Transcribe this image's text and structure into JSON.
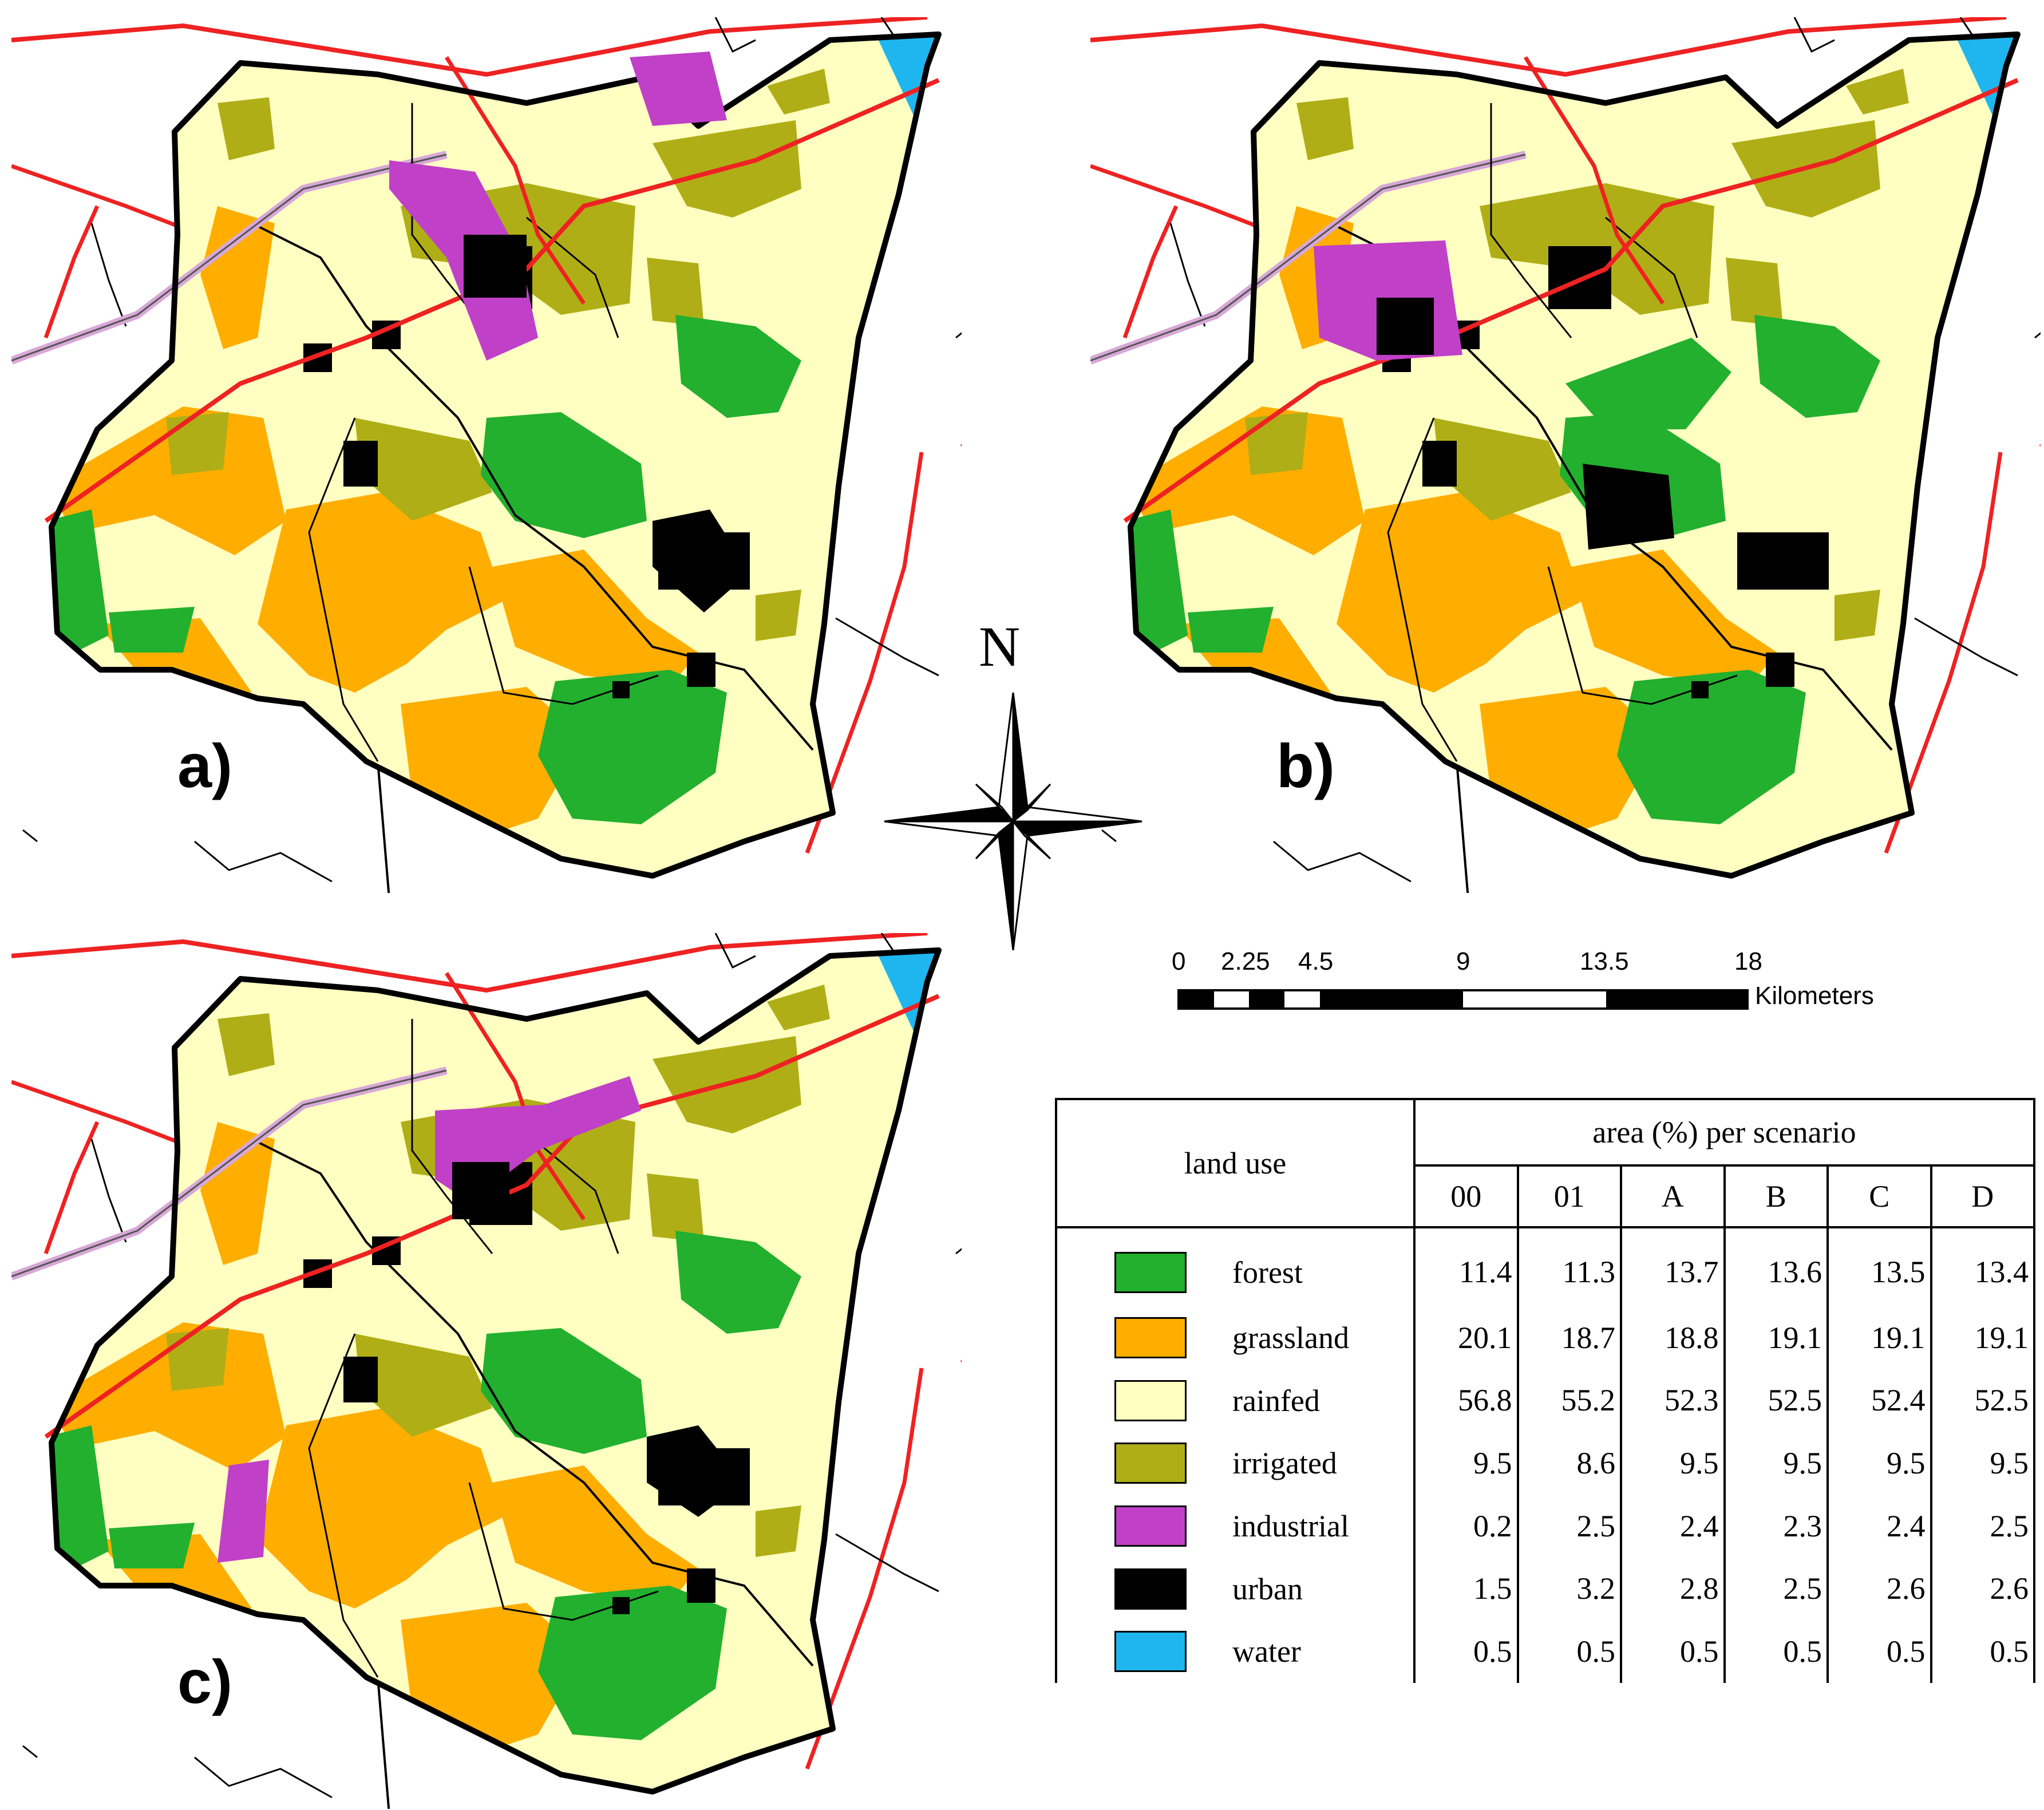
{
  "panels": [
    {
      "label": "a)"
    },
    {
      "label": "b)"
    },
    {
      "label": "c)"
    }
  ],
  "north_arrow": {
    "letter": "N",
    "icon": "compass-rose-icon"
  },
  "scale_bar": {
    "ticks": [
      "0",
      "2.25",
      "4.5",
      "9",
      "13.5",
      "18"
    ],
    "unit": "Kilometers"
  },
  "colors": {
    "forest": "#22b02e",
    "grassland": "#ffae00",
    "rainfed": "#ffffc2",
    "irrigated": "#b0ae16",
    "industrial": "#c040c8",
    "urban": "#000000",
    "water": "#1fb6f0",
    "roads": "#ee2222",
    "railway": "#d8a8d8"
  },
  "legend_table": {
    "col_land_use": "land use",
    "col_area": "area (%) per scenario",
    "scenarios": [
      "00",
      "01",
      "A",
      "B",
      "C",
      "D"
    ],
    "rows": [
      {
        "name": "forest",
        "color": "#22b02e",
        "values": [
          "11.4",
          "11.3",
          "13.7",
          "13.6",
          "13.5",
          "13.4"
        ]
      },
      {
        "name": "grassland",
        "color": "#ffae00",
        "values": [
          "20.1",
          "18.7",
          "18.8",
          "19.1",
          "19.1",
          "19.1"
        ]
      },
      {
        "name": "rainfed",
        "color": "#ffffc2",
        "values": [
          "56.8",
          "55.2",
          "52.3",
          "52.5",
          "52.4",
          "52.5"
        ]
      },
      {
        "name": "irrigated",
        "color": "#b0ae16",
        "values": [
          "9.5",
          "8.6",
          "9.5",
          "9.5",
          "9.5",
          "9.5"
        ]
      },
      {
        "name": "industrial",
        "color": "#c040c8",
        "values": [
          "0.2",
          "2.5",
          "2.4",
          "2.3",
          "2.4",
          "2.5"
        ]
      },
      {
        "name": "urban",
        "color": "#000000",
        "values": [
          "1.5",
          "3.2",
          "2.8",
          "2.5",
          "2.6",
          "2.6"
        ]
      },
      {
        "name": "water",
        "color": "#1fb6f0",
        "values": [
          "0.5",
          "0.5",
          "0.5",
          "0.5",
          "0.5",
          "0.5"
        ]
      }
    ]
  }
}
